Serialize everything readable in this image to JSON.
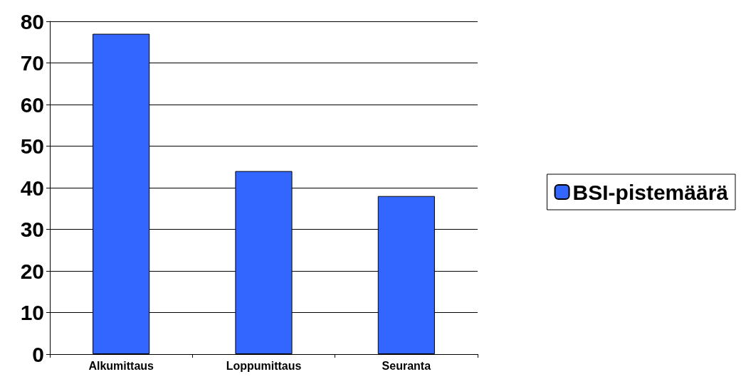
{
  "chart_data": {
    "type": "bar",
    "categories": [
      "Alkumittaus",
      "Loppumittaus",
      "Seuranta"
    ],
    "series": [
      {
        "name": "BSI-pistemäärä",
        "color": "#3366ff",
        "values": [
          77,
          44,
          38
        ]
      }
    ],
    "ylim": [
      0,
      80
    ],
    "yticks": [
      0,
      10,
      20,
      30,
      40,
      50,
      60,
      70,
      80
    ],
    "grid": "y",
    "legend": "right"
  }
}
